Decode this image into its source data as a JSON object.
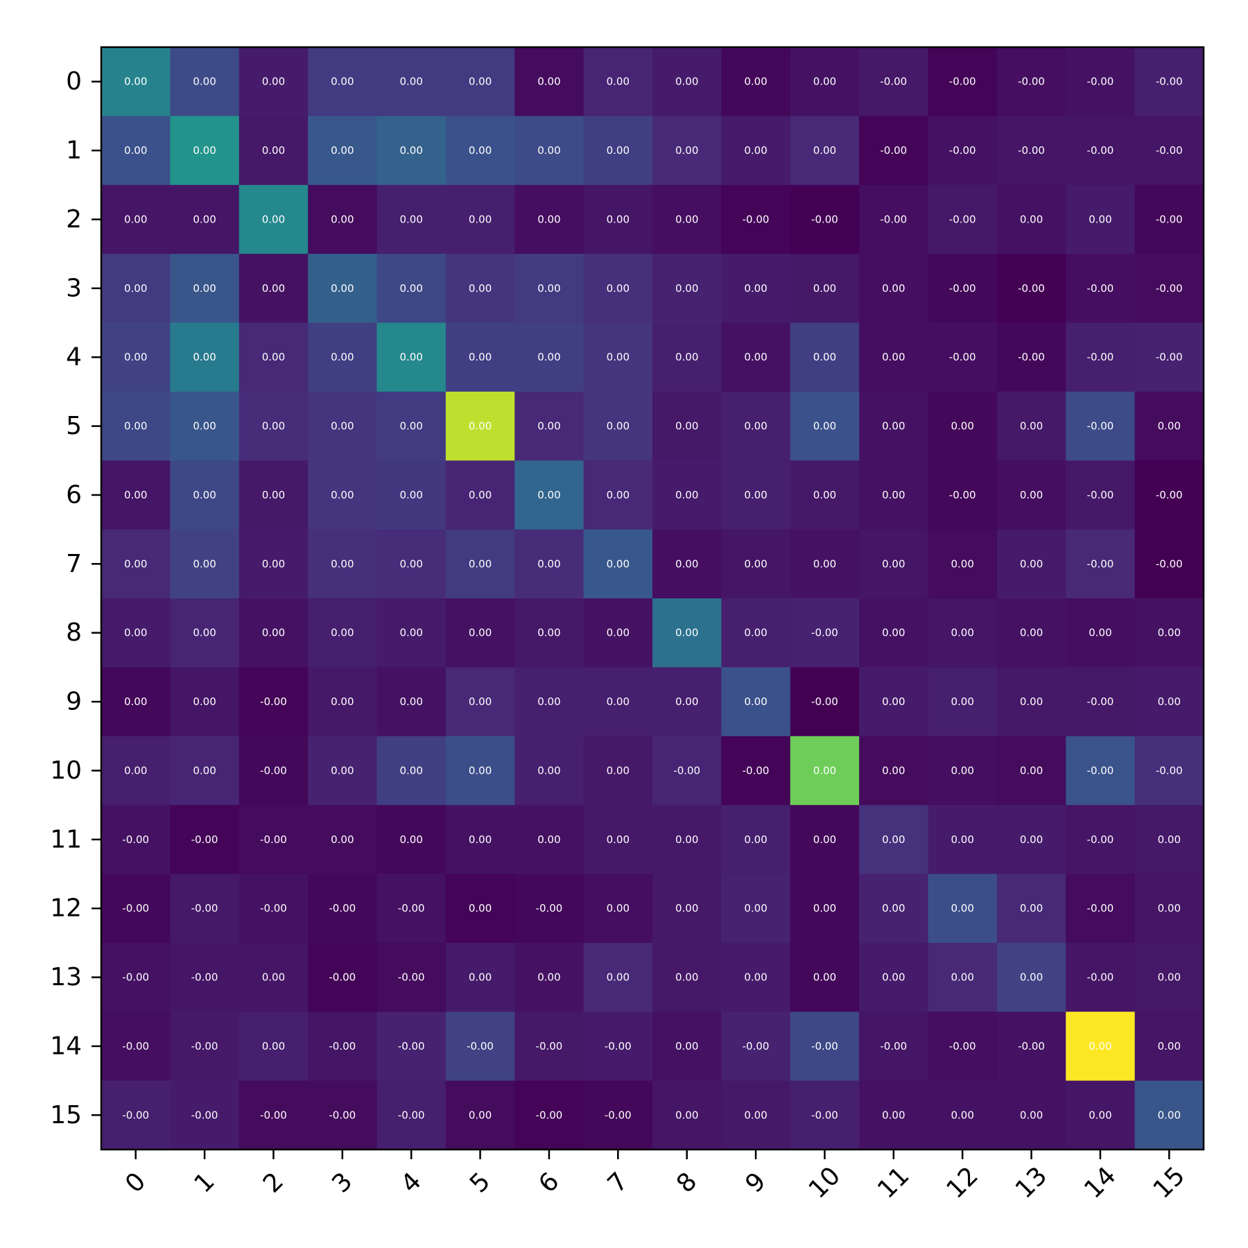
{
  "chart_data": {
    "type": "heatmap",
    "title": "",
    "xlabel": "",
    "ylabel": "",
    "x_categories": [
      "0",
      "1",
      "2",
      "3",
      "4",
      "5",
      "6",
      "7",
      "8",
      "9",
      "10",
      "11",
      "12",
      "13",
      "14",
      "15"
    ],
    "y_categories": [
      "0",
      "1",
      "2",
      "3",
      "4",
      "5",
      "6",
      "7",
      "8",
      "9",
      "10",
      "11",
      "12",
      "13",
      "14",
      "15"
    ],
    "colormap": "viridis",
    "colorbar": false,
    "value_range": [
      0,
      1
    ],
    "intensity": [
      [
        0.45,
        0.23,
        0.08,
        0.18,
        0.18,
        0.18,
        0.03,
        0.11,
        0.08,
        0.02,
        0.05,
        0.07,
        0.01,
        0.04,
        0.05,
        0.09
      ],
      [
        0.25,
        0.52,
        0.07,
        0.28,
        0.32,
        0.25,
        0.23,
        0.19,
        0.12,
        0.08,
        0.12,
        0.01,
        0.05,
        0.06,
        0.06,
        0.06
      ],
      [
        0.06,
        0.06,
        0.47,
        0.03,
        0.09,
        0.09,
        0.04,
        0.06,
        0.04,
        0.01,
        0.0,
        0.04,
        0.07,
        0.05,
        0.08,
        0.02
      ],
      [
        0.18,
        0.27,
        0.05,
        0.31,
        0.22,
        0.16,
        0.18,
        0.14,
        0.1,
        0.08,
        0.07,
        0.04,
        0.02,
        0.0,
        0.04,
        0.03
      ],
      [
        0.2,
        0.42,
        0.12,
        0.19,
        0.47,
        0.19,
        0.19,
        0.16,
        0.09,
        0.05,
        0.19,
        0.04,
        0.04,
        0.02,
        0.09,
        0.1
      ],
      [
        0.22,
        0.27,
        0.13,
        0.16,
        0.18,
        0.91,
        0.12,
        0.16,
        0.07,
        0.09,
        0.25,
        0.05,
        0.02,
        0.07,
        0.23,
        0.03
      ],
      [
        0.06,
        0.22,
        0.07,
        0.16,
        0.17,
        0.11,
        0.33,
        0.12,
        0.08,
        0.09,
        0.07,
        0.05,
        0.02,
        0.04,
        0.07,
        0.0
      ],
      [
        0.12,
        0.2,
        0.08,
        0.14,
        0.13,
        0.18,
        0.13,
        0.28,
        0.04,
        0.06,
        0.05,
        0.06,
        0.03,
        0.08,
        0.12,
        0.0
      ],
      [
        0.08,
        0.11,
        0.05,
        0.09,
        0.08,
        0.05,
        0.07,
        0.05,
        0.38,
        0.09,
        0.1,
        0.05,
        0.06,
        0.05,
        0.04,
        0.05
      ],
      [
        0.02,
        0.06,
        0.01,
        0.07,
        0.05,
        0.12,
        0.09,
        0.09,
        0.09,
        0.25,
        0.0,
        0.08,
        0.09,
        0.07,
        0.07,
        0.08
      ],
      [
        0.09,
        0.11,
        0.02,
        0.1,
        0.19,
        0.24,
        0.09,
        0.07,
        0.11,
        0.01,
        0.78,
        0.03,
        0.04,
        0.03,
        0.26,
        0.14
      ],
      [
        0.05,
        0.01,
        0.03,
        0.03,
        0.02,
        0.05,
        0.05,
        0.07,
        0.07,
        0.09,
        0.02,
        0.15,
        0.08,
        0.08,
        0.06,
        0.07
      ],
      [
        0.02,
        0.07,
        0.05,
        0.02,
        0.05,
        0.01,
        0.02,
        0.04,
        0.07,
        0.1,
        0.02,
        0.1,
        0.24,
        0.12,
        0.03,
        0.06
      ],
      [
        0.05,
        0.06,
        0.06,
        0.01,
        0.03,
        0.08,
        0.05,
        0.12,
        0.07,
        0.08,
        0.02,
        0.08,
        0.12,
        0.2,
        0.06,
        0.07
      ],
      [
        0.04,
        0.07,
        0.09,
        0.06,
        0.1,
        0.2,
        0.07,
        0.08,
        0.05,
        0.1,
        0.22,
        0.06,
        0.04,
        0.05,
        1.0,
        0.06
      ],
      [
        0.09,
        0.08,
        0.03,
        0.03,
        0.09,
        0.03,
        0.01,
        0.02,
        0.06,
        0.07,
        0.09,
        0.05,
        0.05,
        0.05,
        0.06,
        0.27
      ]
    ],
    "cell_labels": [
      [
        "0.00",
        "0.00",
        "0.00",
        "0.00",
        "0.00",
        "0.00",
        "0.00",
        "0.00",
        "0.00",
        "0.00",
        "0.00",
        "-0.00",
        "-0.00",
        "-0.00",
        "-0.00",
        "-0.00"
      ],
      [
        "0.00",
        "0.00",
        "0.00",
        "0.00",
        "0.00",
        "0.00",
        "0.00",
        "0.00",
        "0.00",
        "0.00",
        "0.00",
        "-0.00",
        "-0.00",
        "-0.00",
        "-0.00",
        "-0.00"
      ],
      [
        "0.00",
        "0.00",
        "0.00",
        "0.00",
        "0.00",
        "0.00",
        "0.00",
        "0.00",
        "0.00",
        "-0.00",
        "-0.00",
        "-0.00",
        "-0.00",
        "0.00",
        "0.00",
        "-0.00"
      ],
      [
        "0.00",
        "0.00",
        "0.00",
        "0.00",
        "0.00",
        "0.00",
        "0.00",
        "0.00",
        "0.00",
        "0.00",
        "0.00",
        "0.00",
        "-0.00",
        "-0.00",
        "-0.00",
        "-0.00"
      ],
      [
        "0.00",
        "0.00",
        "0.00",
        "0.00",
        "0.00",
        "0.00",
        "0.00",
        "0.00",
        "0.00",
        "0.00",
        "0.00",
        "0.00",
        "-0.00",
        "-0.00",
        "-0.00",
        "-0.00"
      ],
      [
        "0.00",
        "0.00",
        "0.00",
        "0.00",
        "0.00",
        "0.00",
        "0.00",
        "0.00",
        "0.00",
        "0.00",
        "0.00",
        "0.00",
        "0.00",
        "0.00",
        "-0.00",
        "0.00"
      ],
      [
        "0.00",
        "0.00",
        "0.00",
        "0.00",
        "0.00",
        "0.00",
        "0.00",
        "0.00",
        "0.00",
        "0.00",
        "0.00",
        "0.00",
        "-0.00",
        "0.00",
        "-0.00",
        "-0.00"
      ],
      [
        "0.00",
        "0.00",
        "0.00",
        "0.00",
        "0.00",
        "0.00",
        "0.00",
        "0.00",
        "0.00",
        "0.00",
        "0.00",
        "0.00",
        "0.00",
        "0.00",
        "-0.00",
        "-0.00"
      ],
      [
        "0.00",
        "0.00",
        "0.00",
        "0.00",
        "0.00",
        "0.00",
        "0.00",
        "0.00",
        "0.00",
        "0.00",
        "-0.00",
        "0.00",
        "0.00",
        "0.00",
        "0.00",
        "0.00"
      ],
      [
        "0.00",
        "0.00",
        "-0.00",
        "0.00",
        "0.00",
        "0.00",
        "0.00",
        "0.00",
        "0.00",
        "0.00",
        "-0.00",
        "0.00",
        "0.00",
        "0.00",
        "-0.00",
        "0.00"
      ],
      [
        "0.00",
        "0.00",
        "-0.00",
        "0.00",
        "0.00",
        "0.00",
        "0.00",
        "0.00",
        "-0.00",
        "-0.00",
        "0.00",
        "0.00",
        "0.00",
        "0.00",
        "-0.00",
        "-0.00"
      ],
      [
        "-0.00",
        "-0.00",
        "-0.00",
        "0.00",
        "0.00",
        "0.00",
        "0.00",
        "0.00",
        "0.00",
        "0.00",
        "0.00",
        "0.00",
        "0.00",
        "0.00",
        "-0.00",
        "0.00"
      ],
      [
        "-0.00",
        "-0.00",
        "-0.00",
        "-0.00",
        "-0.00",
        "0.00",
        "-0.00",
        "0.00",
        "0.00",
        "0.00",
        "0.00",
        "0.00",
        "0.00",
        "0.00",
        "-0.00",
        "0.00"
      ],
      [
        "-0.00",
        "-0.00",
        "0.00",
        "-0.00",
        "-0.00",
        "0.00",
        "0.00",
        "0.00",
        "0.00",
        "0.00",
        "0.00",
        "0.00",
        "0.00",
        "0.00",
        "-0.00",
        "0.00"
      ],
      [
        "-0.00",
        "-0.00",
        "0.00",
        "-0.00",
        "-0.00",
        "-0.00",
        "-0.00",
        "-0.00",
        "0.00",
        "-0.00",
        "-0.00",
        "-0.00",
        "-0.00",
        "-0.00",
        "0.00",
        "0.00"
      ],
      [
        "-0.00",
        "-0.00",
        "-0.00",
        "-0.00",
        "-0.00",
        "0.00",
        "-0.00",
        "-0.00",
        "0.00",
        "0.00",
        "-0.00",
        "0.00",
        "0.00",
        "0.00",
        "0.00",
        "0.00"
      ]
    ]
  }
}
